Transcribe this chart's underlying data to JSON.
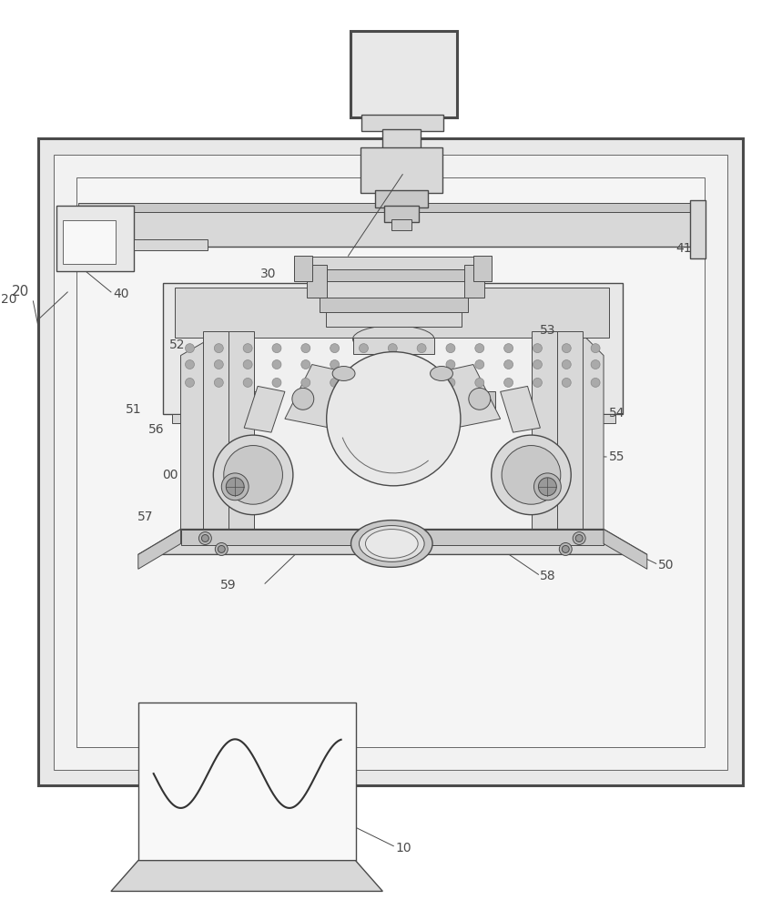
{
  "bg": "#ffffff",
  "lc": "#4a4a4a",
  "lc2": "#666666",
  "gray1": "#e8e8e8",
  "gray2": "#d8d8d8",
  "gray3": "#c8c8c8",
  "gray4": "#b8b8b8",
  "fig_w": 8.59,
  "fig_h": 10.0,
  "dpi": 100,
  "lw_outer": 2.2,
  "lw_inner": 1.0,
  "lw_thin": 0.7,
  "lw_detail": 0.5
}
